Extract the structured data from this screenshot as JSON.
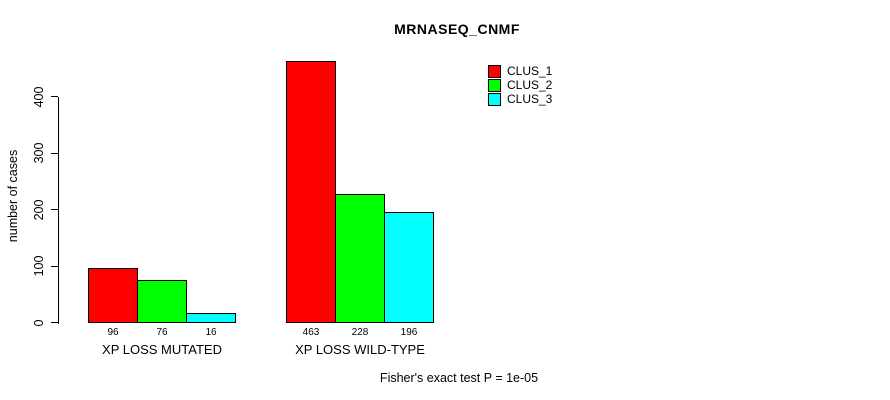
{
  "chart_data": {
    "type": "bar",
    "title": "MRNASEQ_CNMF",
    "xlabel": "",
    "ylabel": "number of cases",
    "ylim": [
      0,
      400
    ],
    "yticks": [
      0,
      100,
      200,
      300,
      400
    ],
    "grid": false,
    "legend_position": "upper-right-inside",
    "categories": [
      "XP LOSS MUTATED",
      "XP LOSS WILD-TYPE"
    ],
    "series": [
      {
        "name": "CLUS_1",
        "color": "#FF0000",
        "values": [
          96,
          463
        ]
      },
      {
        "name": "CLUS_2",
        "color": "#00FF00",
        "values": [
          76,
          228
        ]
      },
      {
        "name": "CLUS_3",
        "color": "#00FFFF",
        "values": [
          16,
          196
        ]
      }
    ],
    "bar_value_labels": [
      [
        "96",
        "76",
        "16"
      ],
      [
        "463",
        "228",
        "196"
      ]
    ],
    "annotation": "Fisher's exact test P = 1e-05"
  }
}
